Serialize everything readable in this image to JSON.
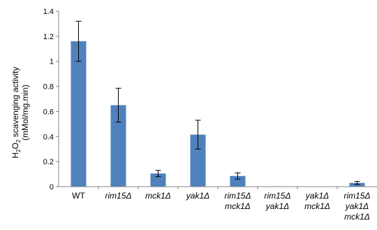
{
  "chart_data": {
    "type": "bar",
    "ylabel_line1_main": "H",
    "ylabel_line1_sub": "2",
    "ylabel_line1_mid": "O",
    "ylabel_line1_sub2": "2",
    "ylabel_line1_rest": " scavenging activity",
    "ylabel_line2": "(mMol/mg.min)",
    "ylim": [
      0,
      1.4
    ],
    "yticks": [
      "0",
      "0.2",
      "0.4",
      "0.6",
      "0.8",
      "1",
      "1.2",
      "1.4"
    ],
    "categories": [
      {
        "lines": [
          "WT"
        ],
        "italic": false
      },
      {
        "lines": [
          "rim15Δ"
        ],
        "italic": true
      },
      {
        "lines": [
          "mck1Δ"
        ],
        "italic": true
      },
      {
        "lines": [
          "yak1Δ"
        ],
        "italic": true
      },
      {
        "lines": [
          "rim15Δ",
          "mck1Δ"
        ],
        "italic": true
      },
      {
        "lines": [
          "rim15Δ",
          "yak1Δ"
        ],
        "italic": true
      },
      {
        "lines": [
          "yak1Δ",
          "mck1Δ"
        ],
        "italic": true
      },
      {
        "lines": [
          "rim15Δ",
          "yak1Δ",
          "mck1Δ"
        ],
        "italic": true
      }
    ],
    "values": [
      1.16,
      0.65,
      0.105,
      0.415,
      0.085,
      0.003,
      0.002,
      0.03
    ],
    "errors": [
      0.16,
      0.135,
      0.025,
      0.115,
      0.025,
      0.0,
      0.0,
      0.012
    ],
    "bar_color": "#4f81bd",
    "grid": false
  }
}
